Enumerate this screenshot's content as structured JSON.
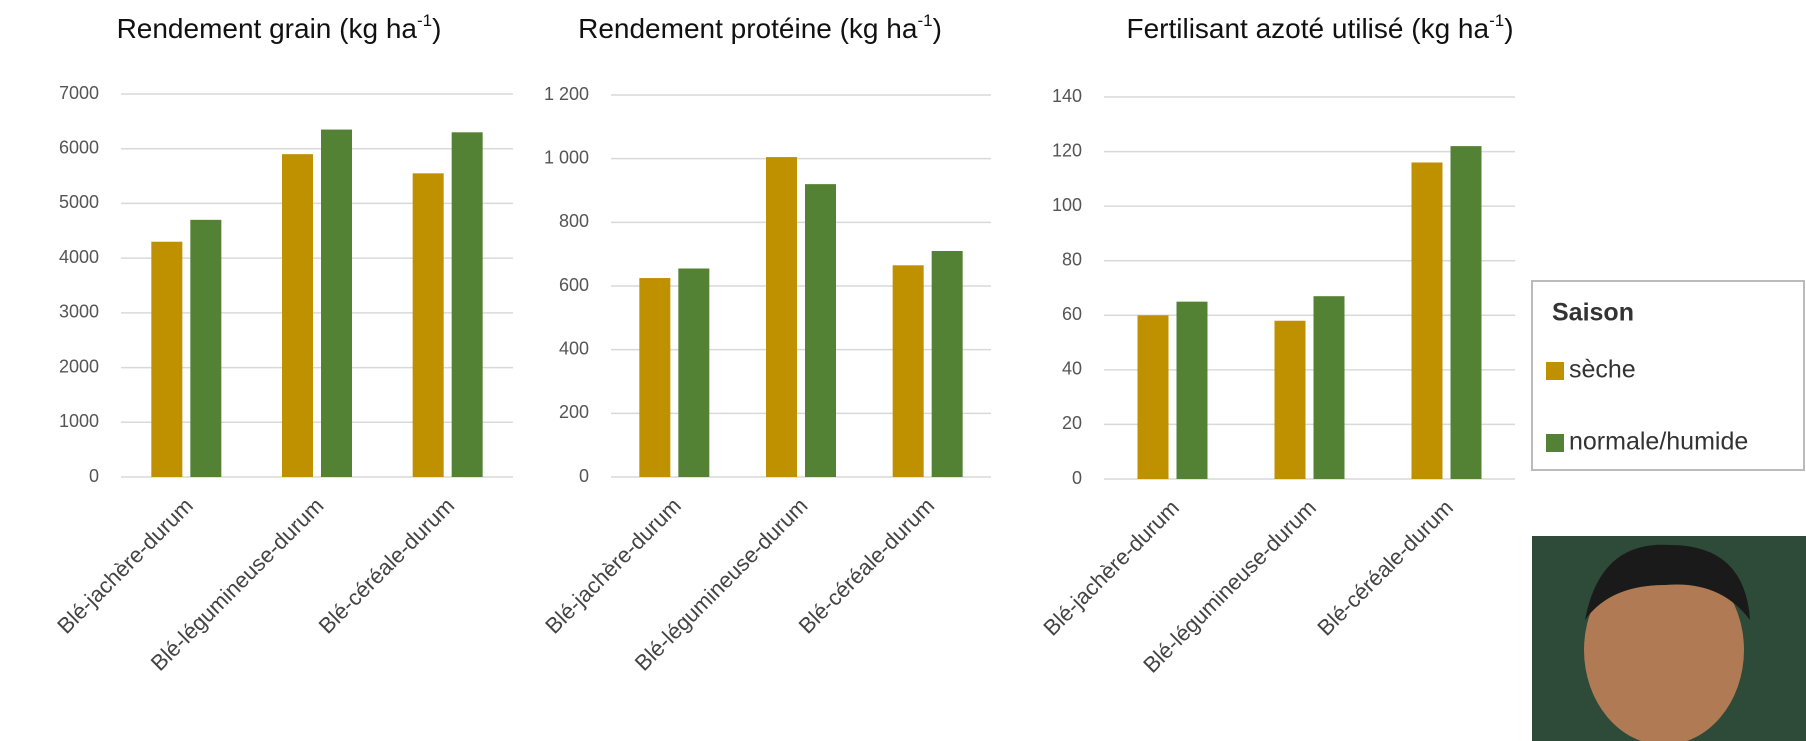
{
  "legend": {
    "title": "Saison"
  },
  "chart_data": [
    {
      "type": "bar",
      "title": {
        "text": "Rendement grain (kg ha",
        "sup": "-1",
        "end": ")"
      },
      "categories": [
        "Blé-jachère-durum",
        "Blé-légumineuse-durum",
        "Blé-céréale-durum"
      ],
      "series": [
        {
          "color": "#bf9000",
          "values": [
            4300,
            5900,
            5550
          ]
        },
        {
          "color": "#548235",
          "values": [
            4700,
            6350,
            6300
          ]
        }
      ],
      "ylim": [
        0,
        7000
      ],
      "yticks": [
        0,
        1000,
        2000,
        3000,
        4000,
        5000,
        6000,
        7000
      ],
      "grid": true
    },
    {
      "type": "bar",
      "title": {
        "text": "Rendement protéine (kg ha",
        "sup": "-1",
        "end": ")"
      },
      "categories": [
        "Blé-jachère-durum",
        "Blé-légumineuse-durum",
        "Blé-céréale-durum"
      ],
      "series": [
        {
          "color": "#bf9000",
          "values": [
            625,
            1005,
            665
          ]
        },
        {
          "color": "#548235",
          "values": [
            655,
            920,
            710
          ]
        }
      ],
      "ylim": [
        0,
        1200
      ],
      "yticks": [
        0,
        200,
        400,
        600,
        800,
        {
          "value": 1000,
          "label": "1 000"
        },
        {
          "value": 1200,
          "label": "1 200"
        }
      ],
      "grid": true
    },
    {
      "type": "bar",
      "title": {
        "text": "Fertilisant azoté utilisé (kg ha",
        "sup": "-1",
        "end": ")"
      },
      "categories": [
        "Blé-jachère-durum",
        "Blé-légumineuse-durum",
        "Blé-céréale-durum"
      ],
      "series": [
        {
          "name": "sèche",
          "color": "#bf9000",
          "values": [
            60,
            58,
            116
          ]
        },
        {
          "name": "normale/humide",
          "color": "#548235",
          "values": [
            65,
            67,
            122
          ]
        }
      ],
      "ylim": [
        0,
        140
      ],
      "yticks": [
        0,
        20,
        40,
        60,
        80,
        100,
        120,
        140
      ],
      "grid": true
    }
  ]
}
